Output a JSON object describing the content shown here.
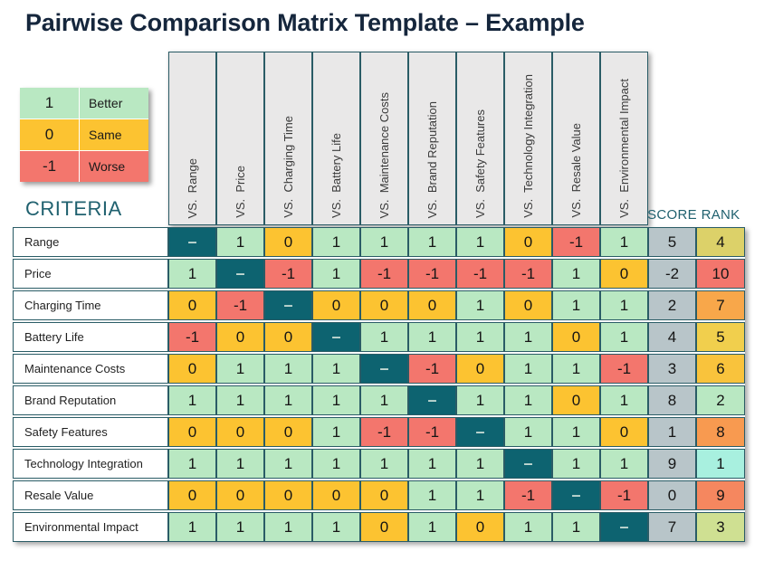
{
  "title": "Pairwise Comparison Matrix Template – Example",
  "legend": {
    "items": [
      {
        "value": "1",
        "label": "Better"
      },
      {
        "value": "0",
        "label": "Same"
      },
      {
        "value": "-1",
        "label": "Worse"
      }
    ]
  },
  "criteria_heading": "CRITERIA",
  "score_heading": "SCORE",
  "rank_heading": "RANK",
  "columns": [
    "VS.  Range",
    "VS.  Price",
    "VS.  Charging Time",
    "VS.  Battery Life",
    "VS.  Maintenance Costs",
    "VS.  Brand Reputation",
    "VS.  Safety Features",
    "VS.  Technology Integration",
    "VS.  Resale Value",
    "VS.  Environmental Impact"
  ],
  "rows": [
    {
      "label": "Range",
      "cells": [
        "–",
        "1",
        "0",
        "1",
        "1",
        "1",
        "1",
        "0",
        "-1",
        "1"
      ],
      "score": "5",
      "rank": "4"
    },
    {
      "label": "Price",
      "cells": [
        "1",
        "–",
        "-1",
        "1",
        "-1",
        "-1",
        "-1",
        "-1",
        "1",
        "0"
      ],
      "score": "-2",
      "rank": "10"
    },
    {
      "label": "Charging Time",
      "cells": [
        "0",
        "-1",
        "–",
        "0",
        "0",
        "0",
        "1",
        "0",
        "1",
        "1"
      ],
      "score": "2",
      "rank": "7"
    },
    {
      "label": "Battery Life",
      "cells": [
        "-1",
        "0",
        "0",
        "–",
        "1",
        "1",
        "1",
        "1",
        "0",
        "1"
      ],
      "score": "4",
      "rank": "5"
    },
    {
      "label": "Maintenance Costs",
      "cells": [
        "0",
        "1",
        "1",
        "1",
        "–",
        "-1",
        "0",
        "1",
        "1",
        "-1"
      ],
      "score": "3",
      "rank": "6"
    },
    {
      "label": "Brand Reputation",
      "cells": [
        "1",
        "1",
        "1",
        "1",
        "1",
        "–",
        "1",
        "1",
        "0",
        "1"
      ],
      "score": "8",
      "rank": "2"
    },
    {
      "label": "Safety Features",
      "cells": [
        "0",
        "0",
        "0",
        "1",
        "-1",
        "-1",
        "–",
        "1",
        "1",
        "0"
      ],
      "score": "1",
      "rank": "8"
    },
    {
      "label": "Technology Integration",
      "cells": [
        "1",
        "1",
        "1",
        "1",
        "1",
        "1",
        "1",
        "–",
        "1",
        "1"
      ],
      "score": "9",
      "rank": "1"
    },
    {
      "label": "Resale Value",
      "cells": [
        "0",
        "0",
        "0",
        "0",
        "0",
        "1",
        "1",
        "-1",
        "–",
        "-1"
      ],
      "score": "0",
      "rank": "9"
    },
    {
      "label": "Environmental Impact",
      "cells": [
        "1",
        "1",
        "1",
        "1",
        "0",
        "1",
        "0",
        "1",
        "1",
        "–"
      ],
      "score": "7",
      "rank": "3"
    }
  ],
  "colors": {
    "value_1": "#b9e8c2",
    "value_0": "#fcc331",
    "value_-1": "#f3766d",
    "diagonal": "#0d6370",
    "score_bg": "#b8c5c9",
    "header_bg": "#e9e8e8",
    "border": "#2a5c66",
    "heading_teal": "#20616f",
    "title_navy": "#15263c",
    "rank": {
      "1": "#a8f0df",
      "2": "#b9e8c2",
      "3": "#cfe092",
      "4": "#dcd169",
      "5": "#f1cf4d",
      "6": "#f9c33c",
      "7": "#f8a74a",
      "8": "#f89a50",
      "9": "#f5875f",
      "10": "#f3766d"
    }
  }
}
